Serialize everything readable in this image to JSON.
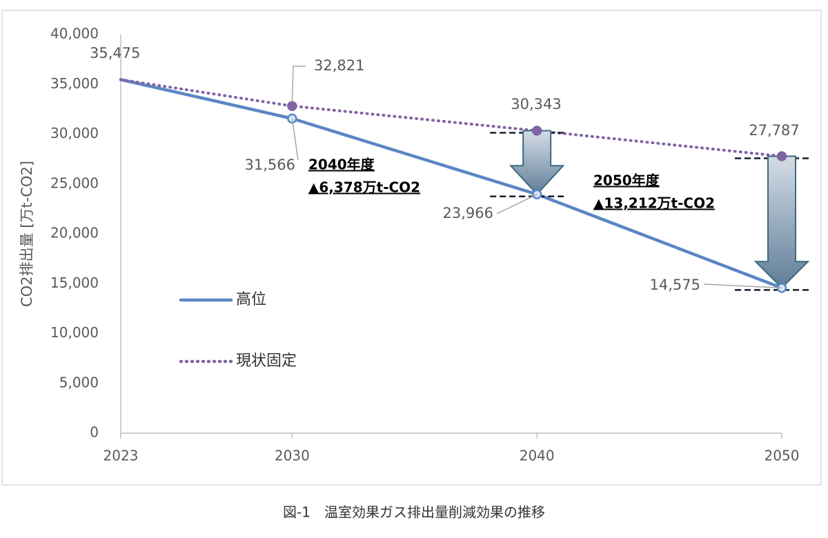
{
  "chart_data": {
    "type": "line",
    "caption": "図-1　温室効果ガス排出量削減効果の推移",
    "y_label": "CO2排出量 [万t-CO2]",
    "x": [
      2023,
      2030,
      2040,
      2050
    ],
    "xlim": [
      2023,
      2050
    ],
    "xticks": [
      2023,
      2030,
      2040,
      2050
    ],
    "ylim": [
      0,
      40000
    ],
    "yticks": [
      0,
      {
        "value": 5000,
        "label": "5,000"
      },
      {
        "value": 10000,
        "label": "10,000"
      },
      {
        "value": 15000,
        "label": "15,000"
      },
      {
        "value": 20000,
        "label": "20,000"
      },
      {
        "value": 25000,
        "label": "25,000"
      },
      {
        "value": 30000,
        "label": "30,000"
      },
      {
        "value": 35000,
        "label": "35,000"
      },
      {
        "value": 40000,
        "label": "40,000"
      }
    ],
    "grid": false,
    "legend": "center-left",
    "series": [
      {
        "name": "高位",
        "color": "#5a86c4",
        "style": "solid",
        "values": [
          35475,
          31566,
          23966,
          14575
        ],
        "value_labels": [
          "35,475",
          "31,566",
          "23,966",
          "14,575"
        ]
      },
      {
        "name": "現状固定",
        "color": "#8064a2",
        "style": "dotted",
        "values": [
          35475,
          32821,
          30343,
          27787
        ],
        "value_labels": [
          null,
          "32,821",
          "30,343",
          "27,787"
        ]
      }
    ],
    "annotations": [
      {
        "x": 2040,
        "lines": [
          "2040年度",
          "▲6,378万t-CO2"
        ]
      },
      {
        "x": 2050,
        "lines": [
          "2050年度",
          "▲13,212万t-CO2"
        ]
      }
    ]
  }
}
